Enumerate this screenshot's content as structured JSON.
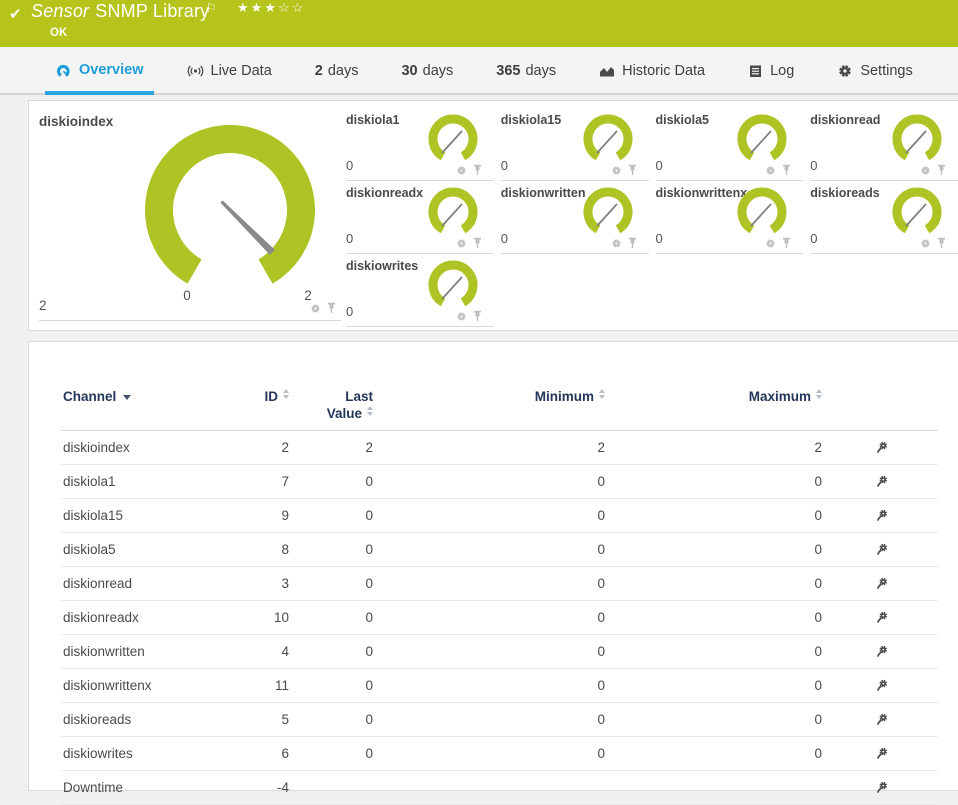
{
  "colors": {
    "header_green": "#b6c31a",
    "gauge_green": "#aec324",
    "needle_gray": "#8a8a8a",
    "small_needle_gray": "#7d7d7d",
    "active_tab_blue": "#1e9ed9",
    "tab_icon_gray": "#4a4a4a",
    "light_icon_gray": "#bdbdbd",
    "table_icon_gray": "#4d4d4d",
    "table_header_navy": "#24375a"
  },
  "header": {
    "status_icon": "check-icon",
    "title_prefix": "Sensor",
    "title": "SNMP Library",
    "flag_icon": "flag-icon",
    "rating": {
      "filled": 3,
      "total": 5
    },
    "status": "OK"
  },
  "tabs": [
    {
      "label": "Overview",
      "icon": "gauge-icon",
      "active": true
    },
    {
      "label": "Live Data",
      "icon": "broadcast-icon",
      "active": false
    },
    {
      "num": "2",
      "label": "days",
      "active": false
    },
    {
      "num": "30",
      "label": "days",
      "active": false
    },
    {
      "num": "365",
      "label": "days",
      "active": false
    },
    {
      "label": "Historic Data",
      "icon": "area-chart-icon",
      "active": false
    },
    {
      "label": "Log",
      "icon": "log-icon",
      "active": false
    },
    {
      "label": "Settings",
      "icon": "gear-icon",
      "active": false
    }
  ],
  "gauges": {
    "main": {
      "name": "diskioindex",
      "value": "2",
      "scale_min": "0",
      "scale_max": "2"
    },
    "small": [
      {
        "name": "diskiola1",
        "value": "0"
      },
      {
        "name": "diskiola15",
        "value": "0"
      },
      {
        "name": "diskiola5",
        "value": "0"
      },
      {
        "name": "diskionread",
        "value": "0"
      },
      {
        "name": "diskionreadx",
        "value": "0"
      },
      {
        "name": "diskionwritten",
        "value": "0"
      },
      {
        "name": "diskionwrittenx",
        "value": "0"
      },
      {
        "name": "diskioreads",
        "value": "0"
      },
      {
        "name": "diskiowrites",
        "value": "0"
      }
    ]
  },
  "table": {
    "columns": [
      {
        "key": "channel",
        "label": "Channel",
        "sort": "dropdown",
        "align": "left"
      },
      {
        "key": "id",
        "label": "ID",
        "sort": "updown",
        "align": "right"
      },
      {
        "key": "last",
        "label": "Last Value",
        "sort": "updown",
        "align": "right",
        "wrap": true
      },
      {
        "key": "min",
        "label": "Minimum",
        "sort": "updown",
        "align": "right"
      },
      {
        "key": "max",
        "label": "Maximum",
        "sort": "updown",
        "align": "right"
      },
      {
        "key": "settings",
        "label": "",
        "sort": "none",
        "align": "center"
      }
    ],
    "rows": [
      {
        "channel": "diskioindex",
        "id": "2",
        "last": "2",
        "min": "2",
        "max": "2"
      },
      {
        "channel": "diskiola1",
        "id": "7",
        "last": "0",
        "min": "0",
        "max": "0"
      },
      {
        "channel": "diskiola15",
        "id": "9",
        "last": "0",
        "min": "0",
        "max": "0"
      },
      {
        "channel": "diskiola5",
        "id": "8",
        "last": "0",
        "min": "0",
        "max": "0"
      },
      {
        "channel": "diskionread",
        "id": "3",
        "last": "0",
        "min": "0",
        "max": "0"
      },
      {
        "channel": "diskionreadx",
        "id": "10",
        "last": "0",
        "min": "0",
        "max": "0"
      },
      {
        "channel": "diskionwritten",
        "id": "4",
        "last": "0",
        "min": "0",
        "max": "0"
      },
      {
        "channel": "diskionwrittenx",
        "id": "11",
        "last": "0",
        "min": "0",
        "max": "0"
      },
      {
        "channel": "diskioreads",
        "id": "5",
        "last": "0",
        "min": "0",
        "max": "0"
      },
      {
        "channel": "diskiowrites",
        "id": "6",
        "last": "0",
        "min": "0",
        "max": "0"
      },
      {
        "channel": "Downtime",
        "id": "-4",
        "last": "",
        "min": "",
        "max": ""
      }
    ]
  }
}
